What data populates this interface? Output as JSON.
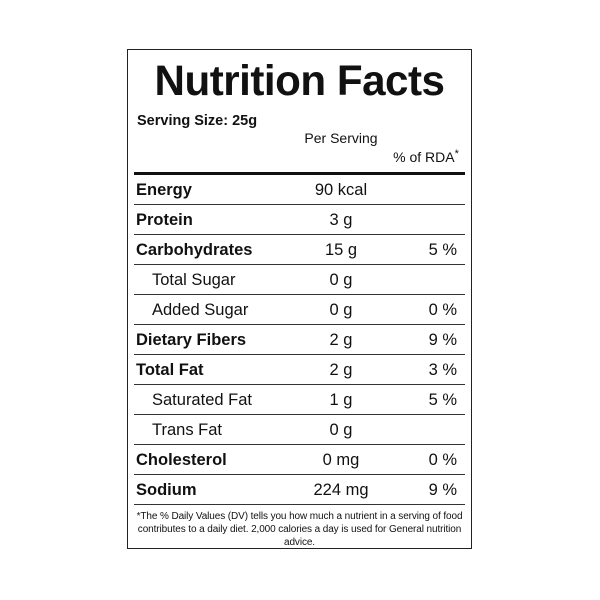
{
  "label": {
    "title": "Nutrition Facts",
    "serving_size": "Serving Size: 25g",
    "col_per_serving": "Per Serving",
    "col_rda": "% of RDA",
    "col_rda_mark": "*",
    "rows": [
      {
        "name": "Energy",
        "amount": "90 kcal",
        "rda": ""
      },
      {
        "name": "Protein",
        "amount": "3 g",
        "rda": ""
      },
      {
        "name": "Carbohydrates",
        "amount": "15 g",
        "rda": "5 %"
      },
      {
        "name": "Total Sugar",
        "amount": "0 g",
        "rda": ""
      },
      {
        "name": "Added Sugar",
        "amount": "0 g",
        "rda": "0 %"
      },
      {
        "name": "Dietary Fibers",
        "amount": "2 g",
        "rda": "9 %"
      },
      {
        "name": "Total Fat",
        "amount": "2 g",
        "rda": "3 %"
      },
      {
        "name": "Saturated Fat",
        "amount": "1 g",
        "rda": "5 %"
      },
      {
        "name": "Trans Fat",
        "amount": "0 g",
        "rda": ""
      },
      {
        "name": "Cholesterol",
        "amount": "0 mg",
        "rda": "0 %"
      },
      {
        "name": "Sodium",
        "amount": "224 mg",
        "rda": "9 %"
      }
    ],
    "footnote": "*The % Daily Values (DV) tells you how much a nutrient in a serving of food contributes to a daily diet. 2,000 calories a day is used for General nutrition advice."
  }
}
